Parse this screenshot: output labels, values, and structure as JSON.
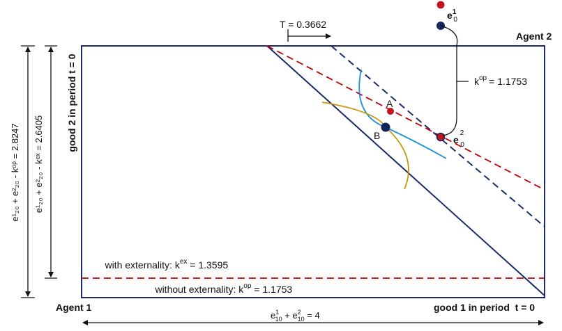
{
  "agents": {
    "agent1": "Agent 1",
    "agent2": "Agent 2"
  },
  "axes": {
    "x_label": "good 1 in period  t = 0",
    "y_label": "good 2 in period t = 0"
  },
  "dimensions": {
    "width_base": "e",
    "width_sup1": "1",
    "width_sub1": "10",
    "width_plus": " + e",
    "width_sup2": "2",
    "width_sub2": "10",
    "width_tail": " = 4",
    "height_outer": "e¹₂₀ + e²₂₀ - kᵒᵖ = 2.8247",
    "height_inner": "e¹₂₀ + e²₂₀ - kᵉˣ = 2.6405"
  },
  "labels": {
    "point_A": "A",
    "point_B": "B",
    "e1_base": "e",
    "e1_sup": "1",
    "e1_sub": "0",
    "e2_base": "e",
    "e2_sup": "2",
    "e2_sub": "0",
    "T_label": "T = 0.3662",
    "kop_k": "k",
    "kop_sup": "op",
    "kop_val": "= 1.1753",
    "with_ext_text": "with externality: k",
    "with_ext_sup": "ex",
    "with_ext_val": " = 1.3595",
    "without_ext_text": "without externality: k",
    "without_ext_sup": "op",
    "without_ext_val": " = 1.1753"
  },
  "colors": {
    "box": "#1a2a6c",
    "navy_line": "#1a2a6c",
    "red_dash": "#c00000",
    "blue_curve": "#1f8fd6",
    "gold_curve": "#c8960c",
    "point_red": "#c0141e",
    "point_navy": "#13265e"
  }
}
